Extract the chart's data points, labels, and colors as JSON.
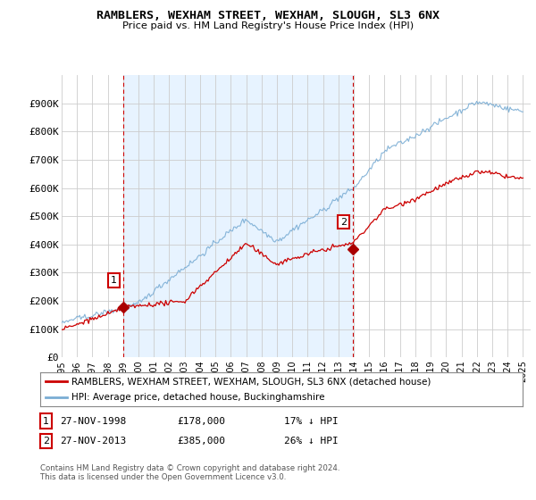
{
  "title": "RAMBLERS, WEXHAM STREET, WEXHAM, SLOUGH, SL3 6NX",
  "subtitle": "Price paid vs. HM Land Registry's House Price Index (HPI)",
  "ylim": [
    0,
    1000000
  ],
  "xlim_start": 1995.0,
  "xlim_end": 2025.5,
  "sale1_year": 1999.0,
  "sale1_price": 178000,
  "sale2_year": 2013.92,
  "sale2_price": 385000,
  "red_line_color": "#cc0000",
  "blue_line_color": "#7aadd4",
  "vline_color": "#cc0000",
  "marker_color": "#aa0000",
  "shade_color": "#ddeeff",
  "legend_label_red": "RAMBLERS, WEXHAM STREET, WEXHAM, SLOUGH, SL3 6NX (detached house)",
  "legend_label_blue": "HPI: Average price, detached house, Buckinghamshire",
  "footnote": "Contains HM Land Registry data © Crown copyright and database right 2024.\nThis data is licensed under the Open Government Licence v3.0.",
  "background_color": "#ffffff",
  "plot_bg_color": "#ffffff",
  "grid_color": "#cccccc"
}
